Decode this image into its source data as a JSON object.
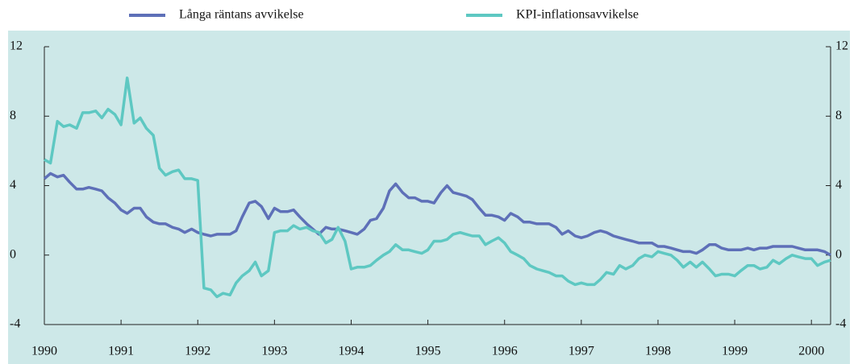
{
  "chart_data": {
    "type": "line",
    "xlim": [
      1990,
      2000.25
    ],
    "xticks": [
      1990,
      1991,
      1992,
      1993,
      1994,
      1995,
      1996,
      1997,
      1998,
      1999,
      2000
    ],
    "ylim": [
      -4,
      12
    ],
    "yticks": [
      12,
      8,
      4,
      0,
      -4
    ],
    "x": [
      1990,
      1990.08,
      1990.17,
      1990.25,
      1990.33,
      1990.42,
      1990.5,
      1990.58,
      1990.67,
      1990.75,
      1990.83,
      1990.92,
      1991,
      1991.08,
      1991.17,
      1991.25,
      1991.33,
      1991.42,
      1991.5,
      1991.58,
      1991.67,
      1991.75,
      1991.83,
      1991.92,
      1992,
      1992.08,
      1992.17,
      1992.25,
      1992.33,
      1992.42,
      1992.5,
      1992.58,
      1992.67,
      1992.75,
      1992.83,
      1992.92,
      1993,
      1993.08,
      1993.17,
      1993.25,
      1993.33,
      1993.42,
      1993.5,
      1993.58,
      1993.67,
      1993.75,
      1993.83,
      1993.92,
      1994,
      1994.08,
      1994.17,
      1994.25,
      1994.33,
      1994.42,
      1994.5,
      1994.58,
      1994.67,
      1994.75,
      1994.83,
      1994.92,
      1995,
      1995.08,
      1995.17,
      1995.25,
      1995.33,
      1995.42,
      1995.5,
      1995.58,
      1995.67,
      1995.75,
      1995.83,
      1995.92,
      1996,
      1996.08,
      1996.17,
      1996.25,
      1996.33,
      1996.42,
      1996.5,
      1996.58,
      1996.67,
      1996.75,
      1996.83,
      1996.92,
      1997,
      1997.08,
      1997.17,
      1997.25,
      1997.33,
      1997.42,
      1997.5,
      1997.58,
      1997.67,
      1997.75,
      1997.83,
      1997.92,
      1998,
      1998.08,
      1998.17,
      1998.25,
      1998.33,
      1998.42,
      1998.5,
      1998.58,
      1998.67,
      1998.75,
      1998.83,
      1998.92,
      1999,
      1999.08,
      1999.17,
      1999.25,
      1999.33,
      1999.42,
      1999.5,
      1999.58,
      1999.67,
      1999.75,
      1999.83,
      1999.92,
      2000,
      2000.08,
      2000.17,
      2000.25
    ],
    "series": [
      {
        "name": "Långa räntans avvikelse",
        "color": "#5e70b8",
        "values": [
          4.4,
          4.7,
          4.5,
          4.6,
          4.2,
          3.8,
          3.8,
          3.9,
          3.8,
          3.7,
          3.3,
          3.0,
          2.6,
          2.4,
          2.7,
          2.7,
          2.2,
          1.9,
          1.8,
          1.8,
          1.6,
          1.5,
          1.3,
          1.5,
          1.3,
          1.2,
          1.1,
          1.2,
          1.2,
          1.2,
          1.4,
          2.2,
          3.0,
          3.1,
          2.8,
          2.1,
          2.7,
          2.5,
          2.5,
          2.6,
          2.2,
          1.8,
          1.5,
          1.2,
          1.6,
          1.5,
          1.5,
          1.4,
          1.3,
          1.2,
          1.5,
          2.0,
          2.1,
          2.7,
          3.7,
          4.1,
          3.6,
          3.3,
          3.3,
          3.1,
          3.1,
          3.0,
          3.6,
          4.0,
          3.6,
          3.5,
          3.4,
          3.2,
          2.7,
          2.3,
          2.3,
          2.2,
          2.0,
          2.4,
          2.2,
          1.9,
          1.9,
          1.8,
          1.8,
          1.8,
          1.6,
          1.2,
          1.4,
          1.1,
          1.0,
          1.1,
          1.3,
          1.4,
          1.3,
          1.1,
          1.0,
          0.9,
          0.8,
          0.7,
          0.7,
          0.7,
          0.5,
          0.5,
          0.4,
          0.3,
          0.2,
          0.2,
          0.1,
          0.3,
          0.6,
          0.6,
          0.4,
          0.3,
          0.3,
          0.3,
          0.4,
          0.3,
          0.4,
          0.4,
          0.5,
          0.5,
          0.5,
          0.5,
          0.4,
          0.3,
          0.3,
          0.3,
          0.2,
          0.0
        ]
      },
      {
        "name": "KPI-inflationsavvikelse",
        "color": "#5ec8c2",
        "values": [
          5.5,
          5.3,
          7.7,
          7.4,
          7.5,
          7.3,
          8.2,
          8.2,
          8.3,
          7.9,
          8.4,
          8.1,
          7.5,
          10.2,
          7.6,
          7.9,
          7.3,
          6.9,
          5.0,
          4.6,
          4.8,
          4.9,
          4.4,
          4.4,
          4.3,
          -1.9,
          -2.0,
          -2.4,
          -2.2,
          -2.3,
          -1.6,
          -1.2,
          -0.9,
          -0.4,
          -1.2,
          -0.9,
          1.3,
          1.4,
          1.4,
          1.7,
          1.5,
          1.6,
          1.4,
          1.3,
          0.7,
          0.9,
          1.6,
          0.8,
          -0.8,
          -0.7,
          -0.7,
          -0.6,
          -0.3,
          0.0,
          0.2,
          0.6,
          0.3,
          0.3,
          0.2,
          0.1,
          0.3,
          0.8,
          0.8,
          0.9,
          1.2,
          1.3,
          1.2,
          1.1,
          1.1,
          0.6,
          0.8,
          1.0,
          0.7,
          0.2,
          0.0,
          -0.2,
          -0.6,
          -0.8,
          -0.9,
          -1.0,
          -1.2,
          -1.2,
          -1.5,
          -1.7,
          -1.6,
          -1.7,
          -1.7,
          -1.4,
          -1.0,
          -1.1,
          -0.6,
          -0.8,
          -0.6,
          -0.2,
          0.0,
          -0.1,
          0.2,
          0.1,
          0.0,
          -0.3,
          -0.7,
          -0.4,
          -0.7,
          -0.4,
          -0.8,
          -1.2,
          -1.1,
          -1.1,
          -1.2,
          -0.9,
          -0.6,
          -0.6,
          -0.8,
          -0.7,
          -0.3,
          -0.5,
          -0.2,
          0.0,
          -0.1,
          -0.2,
          -0.2,
          -0.6,
          -0.4,
          -0.3
        ]
      }
    ]
  }
}
